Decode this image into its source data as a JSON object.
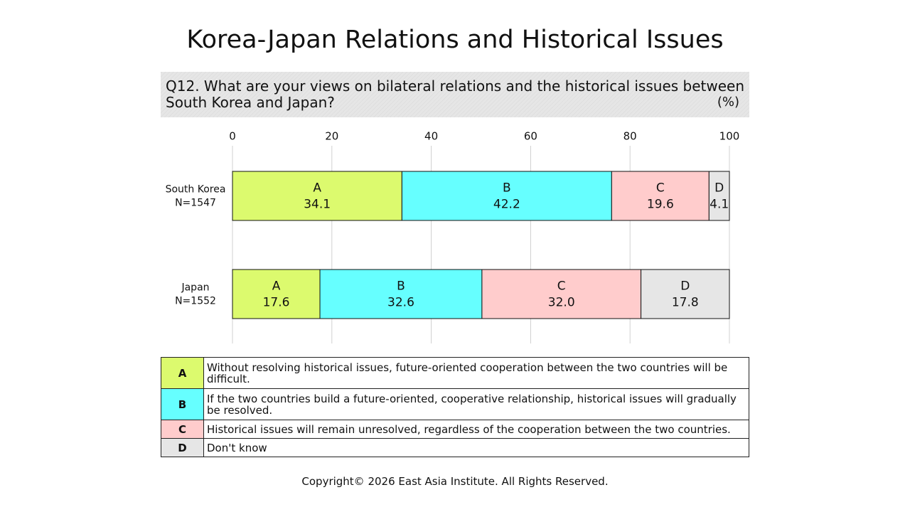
{
  "chart_data": {
    "type": "bar",
    "stacked": true,
    "orientation": "horizontal",
    "title": "Korea-Japan Relations and Historical Issues",
    "subtitle": "Q12. What are your views on bilateral relations and the historical issues between South Korea and Japan?",
    "unit_label": "(%)",
    "categories": [
      "South Korea",
      "Japan"
    ],
    "sample_sizes": [
      "N=1547",
      "N=1552"
    ],
    "series": [
      {
        "name": "A",
        "color": "#dcfa6e",
        "description": "Without resolving historical issues, future-oriented cooperation between the two countries will be difficult.",
        "values": [
          34.1,
          17.6
        ]
      },
      {
        "name": "B",
        "color": "#66ffff",
        "description": "If the two countries build a future-oriented, cooperative relationship, historical issues will gradually be resolved.",
        "values": [
          42.2,
          32.6
        ]
      },
      {
        "name": "C",
        "color": "#ffcccc",
        "description": "Historical issues will remain unresolved, regardless of the cooperation between the two countries.",
        "values": [
          19.6,
          32.0
        ],
        "value_labels": [
          "19.6",
          "32.0"
        ]
      },
      {
        "name": "D",
        "color": "#e6e6e6",
        "description": "Don't know",
        "values": [
          4.1,
          17.8
        ]
      }
    ],
    "xlim": [
      0,
      100
    ],
    "xticks": [
      0,
      20,
      40,
      60,
      80,
      100
    ],
    "grid": true,
    "footer": "Copyright© 2026 East Asia Institute. All Rights Reserved."
  }
}
